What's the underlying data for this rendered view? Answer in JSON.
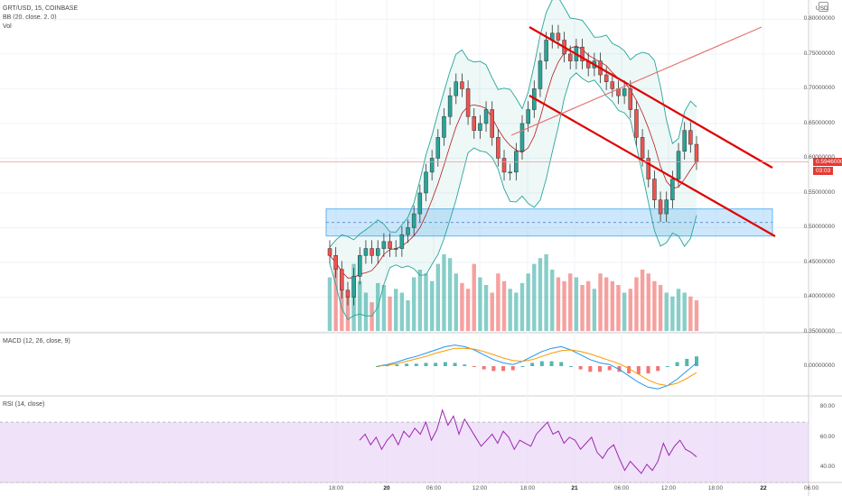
{
  "header": {
    "symbol_line": "GRT/USD, 15, COINBASE",
    "bb_label": "BB (20, close, 2, 0)",
    "vol_label": "Vol",
    "currency": "USD"
  },
  "macd_label": "MACD (12, 26, close, 9)",
  "rsi_label": "RSI (14, close)",
  "last_price": {
    "value": "0.59460000",
    "countdown": "03:03",
    "color": "#e53935"
  },
  "colors": {
    "up": "#26a69a",
    "down": "#ef5350",
    "trend": "#e00000",
    "zone": "#90caf9",
    "bb": "#26a69a",
    "rsi_bg": "#e9d5f7",
    "rsi_line": "#9c27b0"
  },
  "chart_data": [
    {
      "type": "candlestick",
      "title": "GRT/USD, 15, COINBASE",
      "y_ticks": [
        "0.80000000",
        "0.75000000",
        "0.70000000",
        "0.65000000",
        "0.60000000",
        "0.55000000",
        "0.50000000",
        "0.45000000",
        "0.40000000",
        "0.35000000"
      ],
      "ylim": [
        0.35,
        0.82
      ],
      "x_ticks": [
        "18:00",
        "20",
        "06:00",
        "12:00",
        "18:00",
        "21",
        "06:00",
        "12:00",
        "18:00",
        "22",
        "06:00"
      ],
      "close_series": [
        0.46,
        0.44,
        0.41,
        0.4,
        0.43,
        0.46,
        0.47,
        0.46,
        0.47,
        0.48,
        0.47,
        0.47,
        0.49,
        0.5,
        0.52,
        0.55,
        0.58,
        0.6,
        0.63,
        0.66,
        0.69,
        0.71,
        0.7,
        0.66,
        0.64,
        0.65,
        0.67,
        0.63,
        0.6,
        0.58,
        0.58,
        0.61,
        0.65,
        0.67,
        0.7,
        0.74,
        0.77,
        0.78,
        0.77,
        0.75,
        0.74,
        0.76,
        0.74,
        0.73,
        0.74,
        0.72,
        0.71,
        0.7,
        0.69,
        0.7,
        0.67,
        0.63,
        0.6,
        0.57,
        0.54,
        0.52,
        0.54,
        0.57,
        0.61,
        0.64,
        0.62,
        0.595
      ],
      "zones": [
        {
          "low": 0.488,
          "high": 0.527
        }
      ],
      "trendlines": [
        {
          "x0": 0.0,
          "y0": 0.81,
          "x1": 1.0,
          "y1": 0.6
        },
        {
          "x0": 0.0,
          "y0": 0.71,
          "x1": 1.0,
          "y1": 0.49
        }
      ]
    },
    {
      "type": "bar",
      "title": "Vol",
      "values": [
        28,
        32,
        22,
        18,
        35,
        26,
        20,
        15,
        25,
        24,
        18,
        22,
        20,
        16,
        28,
        32,
        30,
        26,
        35,
        40,
        38,
        30,
        25,
        22,
        35,
        28,
        24,
        20,
        30,
        26,
        22,
        20,
        25,
        30,
        35,
        38,
        40,
        32,
        28,
        26,
        30,
        28,
        24,
        26,
        22,
        30,
        28,
        26,
        24,
        20,
        22,
        28,
        32,
        30,
        26,
        24,
        20,
        18,
        22,
        20,
        18,
        16
      ]
    },
    {
      "type": "line",
      "title": "MACD (12, 26, close, 9)",
      "y_ticks": [
        "0.00000000"
      ],
      "macd": [
        0,
        0.002,
        0.005,
        0.009,
        0.012,
        0.016,
        0.02,
        0.024,
        0.026,
        0.024,
        0.02,
        0.014,
        0.008,
        0.004,
        0.002,
        0.006,
        0.012,
        0.018,
        0.022,
        0.024,
        0.02,
        0.014,
        0.008,
        0.004,
        0.002,
        -0.004,
        -0.012,
        -0.02,
        -0.026,
        -0.028,
        -0.024,
        -0.016,
        -0.006,
        0.004
      ],
      "signal": [
        0,
        0.001,
        0.003,
        0.006,
        0.009,
        0.012,
        0.016,
        0.019,
        0.022,
        0.022,
        0.021,
        0.018,
        0.014,
        0.01,
        0.007,
        0.006,
        0.008,
        0.012,
        0.016,
        0.019,
        0.02,
        0.018,
        0.015,
        0.011,
        0.007,
        0.003,
        -0.003,
        -0.01,
        -0.017,
        -0.022,
        -0.024,
        -0.021,
        -0.015,
        -0.008
      ]
    },
    {
      "type": "line",
      "title": "RSI (14, close)",
      "y_ticks": [
        "80.00",
        "60.00",
        "40.00"
      ],
      "ylim": [
        30,
        85
      ],
      "values": [
        58,
        62,
        55,
        60,
        52,
        58,
        62,
        55,
        64,
        60,
        66,
        62,
        70,
        58,
        65,
        78,
        68,
        74,
        62,
        72,
        66,
        60,
        54,
        58,
        62,
        56,
        64,
        60,
        52,
        58,
        56,
        54,
        62,
        66,
        70,
        62,
        64,
        56,
        60,
        58,
        52,
        56,
        60,
        50,
        46,
        52,
        55,
        46,
        38,
        44,
        40,
        36,
        42,
        38,
        44,
        56,
        48,
        54,
        58,
        52,
        50,
        47
      ]
    }
  ]
}
